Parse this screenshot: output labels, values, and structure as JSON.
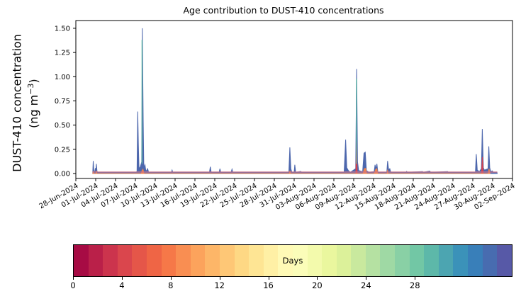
{
  "title": "Age contribution to DUST-410 concentrations",
  "ylabel": {
    "line1": "DUST-410 concentration",
    "unit_prefix": "(ng m",
    "unit_exp": "−3",
    "unit_suffix": ")"
  },
  "chart_data": {
    "type": "area",
    "stacked": true,
    "title": "Age contribution to DUST-410 concentrations",
    "xlabel": "",
    "ylabel": "DUST-410 concentration (ng m^-3)",
    "x_axis": {
      "start_date": "28-Jun-2024",
      "end_day": 66,
      "tick_days": [
        0,
        3,
        6,
        9,
        12,
        15,
        18,
        21,
        24,
        27,
        30,
        33,
        36,
        39,
        42,
        45,
        48,
        51,
        54,
        57,
        60,
        63,
        66
      ],
      "tick_labels": [
        "28-Jun-2024",
        "01-Jul-2024",
        "04-Jul-2024",
        "07-Jul-2024",
        "10-Jul-2024",
        "13-Jul-2024",
        "16-Jul-2024",
        "19-Jul-2024",
        "22-Jul-2024",
        "25-Jul-2024",
        "28-Jul-2024",
        "31-Jul-2024",
        "03-Aug-2024",
        "06-Aug-2024",
        "09-Aug-2024",
        "12-Aug-2024",
        "15-Aug-2024",
        "18-Aug-2024",
        "21-Aug-2024",
        "24-Aug-2024",
        "27-Aug-2024",
        "30-Aug-2024",
        "02-Sep-2024"
      ]
    },
    "y_axis": {
      "ticks": [
        0.0,
        0.25,
        0.5,
        0.75,
        1.0,
        1.25,
        1.5
      ],
      "tick_labels": [
        "0.00",
        "0.25",
        "0.50",
        "0.75",
        "1.00",
        "1.25",
        "1.50"
      ],
      "ylim": [
        -0.051,
        1.58
      ]
    },
    "grid": false,
    "legend": "none",
    "series": [
      {
        "name": "oldest-age-contribution",
        "color": "#4d67ad",
        "points": [
          [
            2.55,
            0.0
          ],
          [
            2.62,
            0.13
          ],
          [
            2.72,
            0.03
          ],
          [
            2.85,
            0.013
          ],
          [
            2.95,
            0.055
          ],
          [
            3.02,
            0.02
          ],
          [
            3.1,
            0.1
          ],
          [
            3.2,
            0.02
          ],
          [
            3.35,
            0.013
          ],
          [
            9.0,
            0.013
          ],
          [
            9.25,
            0.02
          ],
          [
            9.35,
            0.64
          ],
          [
            9.45,
            0.3
          ],
          [
            9.55,
            0.05
          ],
          [
            9.75,
            0.07
          ],
          [
            9.95,
            0.12
          ],
          [
            10.05,
            1.5
          ],
          [
            10.18,
            0.55
          ],
          [
            10.28,
            0.06
          ],
          [
            10.45,
            0.09
          ],
          [
            10.6,
            0.02
          ],
          [
            10.85,
            0.05
          ],
          [
            11.0,
            0.013
          ],
          [
            14.45,
            0.013
          ],
          [
            14.55,
            0.035
          ],
          [
            14.65,
            0.013
          ],
          [
            20.2,
            0.013
          ],
          [
            20.32,
            0.07
          ],
          [
            20.45,
            0.013
          ],
          [
            21.65,
            0.013
          ],
          [
            21.78,
            0.05
          ],
          [
            21.9,
            0.013
          ],
          [
            23.4,
            0.013
          ],
          [
            23.5,
            0.02
          ],
          [
            23.6,
            0.045
          ],
          [
            23.72,
            0.013
          ],
          [
            32.2,
            0.013
          ],
          [
            32.35,
            0.27
          ],
          [
            32.5,
            0.05
          ],
          [
            32.65,
            0.013
          ],
          [
            33.0,
            0.013
          ],
          [
            33.1,
            0.09
          ],
          [
            33.22,
            0.013
          ],
          [
            34.0,
            0.022
          ],
          [
            34.12,
            0.013
          ],
          [
            40.55,
            0.013
          ],
          [
            40.78,
            0.35
          ],
          [
            40.95,
            0.06
          ],
          [
            41.2,
            0.03
          ],
          [
            41.5,
            0.013
          ],
          [
            42.3,
            0.05
          ],
          [
            42.44,
            1.08
          ],
          [
            42.58,
            0.12
          ],
          [
            42.75,
            0.03
          ],
          [
            43.35,
            0.02
          ],
          [
            43.55,
            0.21
          ],
          [
            43.75,
            0.22
          ],
          [
            43.92,
            0.03
          ],
          [
            44.3,
            0.013
          ],
          [
            45.1,
            0.02
          ],
          [
            45.22,
            0.09
          ],
          [
            45.35,
            0.045
          ],
          [
            45.5,
            0.1
          ],
          [
            45.65,
            0.013
          ],
          [
            47.0,
            0.013
          ],
          [
            47.12,
            0.13
          ],
          [
            47.28,
            0.035
          ],
          [
            47.45,
            0.05
          ],
          [
            47.6,
            0.013
          ],
          [
            49.9,
            0.013
          ],
          [
            50.0,
            0.022
          ],
          [
            50.1,
            0.013
          ],
          [
            52.4,
            0.02
          ],
          [
            52.5,
            0.013
          ],
          [
            53.5,
            0.025
          ],
          [
            53.62,
            0.013
          ],
          [
            56.2,
            0.02
          ],
          [
            56.3,
            0.013
          ],
          [
            60.4,
            0.013
          ],
          [
            60.52,
            0.2
          ],
          [
            60.67,
            0.035
          ],
          [
            61.0,
            0.02
          ],
          [
            61.3,
            0.05
          ],
          [
            61.44,
            0.46
          ],
          [
            61.6,
            0.06
          ],
          [
            61.75,
            0.035
          ],
          [
            62.3,
            0.05
          ],
          [
            62.42,
            0.28
          ],
          [
            62.56,
            0.06
          ],
          [
            62.7,
            0.02
          ],
          [
            62.95,
            0.028
          ],
          [
            63.1,
            0.013
          ],
          [
            63.65,
            0.013
          ],
          [
            63.7,
            0.0
          ]
        ]
      },
      {
        "name": "young-age-red-contribution",
        "color": "#d6424e",
        "points": [
          [
            42.32,
            0
          ],
          [
            42.42,
            0.33
          ],
          [
            42.52,
            0
          ],
          [
            61.32,
            0
          ],
          [
            61.45,
            0.17
          ],
          [
            61.58,
            0
          ]
        ]
      },
      {
        "name": "mid-age-orange-contribution",
        "color": "#f0824c",
        "points": [
          [
            2.56,
            0
          ],
          [
            2.62,
            0.025
          ],
          [
            2.7,
            0
          ],
          [
            3.05,
            0
          ],
          [
            3.1,
            0.03
          ],
          [
            3.17,
            0
          ],
          [
            9.9,
            0
          ],
          [
            10.0,
            0.03
          ],
          [
            10.15,
            0.045
          ],
          [
            10.3,
            0
          ],
          [
            32.28,
            0
          ],
          [
            32.36,
            0.03
          ],
          [
            32.44,
            0
          ],
          [
            43.4,
            0
          ],
          [
            43.6,
            0.05
          ],
          [
            43.8,
            0.055
          ],
          [
            43.95,
            0
          ],
          [
            45.12,
            0
          ],
          [
            45.3,
            0.04
          ],
          [
            45.5,
            0.05
          ],
          [
            45.62,
            0
          ],
          [
            47.05,
            0
          ],
          [
            47.12,
            0.04
          ],
          [
            47.2,
            0
          ],
          [
            62.3,
            0
          ],
          [
            62.45,
            0.05
          ],
          [
            62.6,
            0
          ]
        ]
      }
    ],
    "baseline_line": {
      "name": "thin-young-layer-line",
      "color": "#c9758b",
      "value": 0.015,
      "start_day": 2.55,
      "end_day": 63.7
    },
    "accents": [
      {
        "name": "teal-layer-sliver",
        "day": 10.0,
        "from": 0.1,
        "to": 1.38,
        "color": "#5fbda3"
      },
      {
        "name": "teal-layer-sliver",
        "day": 42.41,
        "from": 0.1,
        "to": 0.98,
        "color": "#5fbda3"
      }
    ]
  },
  "colorbar": {
    "label": "Days",
    "ticks": [
      0,
      4,
      8,
      12,
      16,
      20,
      24,
      28
    ],
    "value_span_days": 36,
    "n_segments": 30,
    "colormap_name": "Spectral",
    "colormap_anchors": [
      "#9e0142",
      "#d53e4f",
      "#f46d43",
      "#fdae61",
      "#fee08b",
      "#ffffbf",
      "#e6f598",
      "#abdda4",
      "#66c2a5",
      "#3288bd",
      "#5e4fa2"
    ]
  }
}
